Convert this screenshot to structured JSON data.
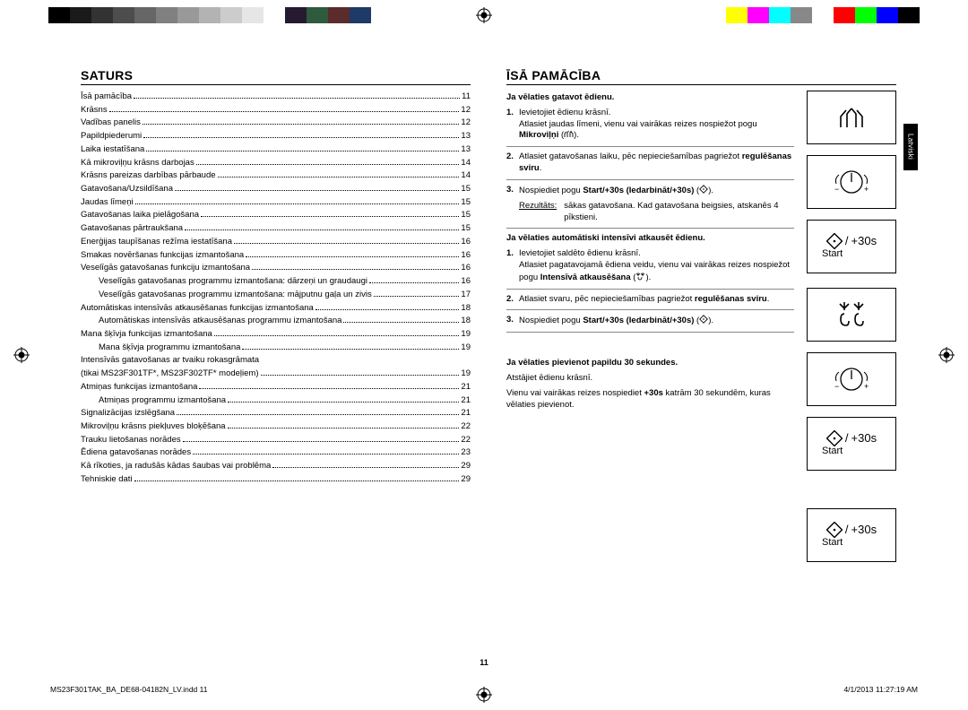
{
  "reg_mark": {
    "stroke": "#000"
  },
  "color_bar": {
    "left": [
      "#000000",
      "#1a1a1a",
      "#333333",
      "#4d4d4d",
      "#666666",
      "#808080",
      "#999999",
      "#b3b3b3",
      "#cccccc",
      "#e6e6e6",
      "#ffffff",
      "#261a33",
      "#2e5a3d",
      "#5a2c2c",
      "#1e3a66"
    ],
    "right": [
      "#ffff00",
      "#ff00ff",
      "#00ffff",
      "#888888",
      "#ffffff",
      "#ff0000",
      "#00ff00",
      "#0000ff",
      "#000000"
    ]
  },
  "side_tab": "Latviski",
  "left": {
    "title": "SATURS",
    "toc": [
      {
        "t": "Īsā pamācība",
        "p": "11",
        "i": 0
      },
      {
        "t": "Krāsns",
        "p": "12",
        "i": 0
      },
      {
        "t": "Vadības panelis",
        "p": "12",
        "i": 0
      },
      {
        "t": "Papildpiederumi",
        "p": "13",
        "i": 0
      },
      {
        "t": "Laika iestatīšana",
        "p": "13",
        "i": 0
      },
      {
        "t": "Kā mikroviļņu krāsns darbojas",
        "p": "14",
        "i": 0
      },
      {
        "t": "Krāsns pareizas darbības pārbaude",
        "p": "14",
        "i": 0
      },
      {
        "t": "Gatavošana/Uzsildīšana",
        "p": "15",
        "i": 0
      },
      {
        "t": "Jaudas līmeņi",
        "p": "15",
        "i": 0
      },
      {
        "t": "Gatavošanas laika pielāgošana",
        "p": "15",
        "i": 0
      },
      {
        "t": "Gatavošanas pārtraukšana",
        "p": "15",
        "i": 0
      },
      {
        "t": "Enerģijas taupīšanas režīma iestatīšana",
        "p": "16",
        "i": 0
      },
      {
        "t": "Smakas novēršanas funkcijas izmantošana",
        "p": "16",
        "i": 0
      },
      {
        "t": "Veselīgās gatavošanas funkciju izmantošana",
        "p": "16",
        "i": 0
      },
      {
        "t": "Veselīgās gatavošanas programmu izmantošana: dārzeņi un graudaugi",
        "p": "16",
        "i": 1
      },
      {
        "t": "Veselīgās gatavošanas programmu izmantošana: mājputnu gaļa un zivis",
        "p": "17",
        "i": 1
      },
      {
        "t": "Automātiskas intensīvās atkausēšanas funkcijas izmantošana",
        "p": "18",
        "i": 0
      },
      {
        "t": "Automātiskas intensīvās atkausēšanas programmu izmantošana",
        "p": "18",
        "i": 1
      },
      {
        "t": "Mana šķīvja funkcijas izmantošana",
        "p": "19",
        "i": 0
      },
      {
        "t": "Mana šķīvja programmu izmantošana",
        "p": "19",
        "i": 1
      },
      {
        "t": "Intensīvās gatavošanas ar tvaiku rokasgrāmata",
        "p": "",
        "i": 0,
        "nodots": true
      },
      {
        "t": "(tikai MS23F301TF*, MS23F302TF* modeļiem)",
        "p": "19",
        "i": 0
      },
      {
        "t": "Atmiņas funkcijas izmantošana",
        "p": "21",
        "i": 0
      },
      {
        "t": "Atmiņas programmu izmantošana",
        "p": "21",
        "i": 1
      },
      {
        "t": "Signalizācijas izslēgšana",
        "p": "21",
        "i": 0
      },
      {
        "t": "Mikroviļņu krāsns piekļuves bloķēšana",
        "p": "22",
        "i": 0
      },
      {
        "t": "Trauku lietošanas norādes",
        "p": "22",
        "i": 0
      },
      {
        "t": "Ēdiena gatavošanas norādes",
        "p": "23",
        "i": 0
      },
      {
        "t": "Kā rīkoties, ja radušās kādas šaubas vai problēma",
        "p": "29",
        "i": 0
      },
      {
        "t": "Tehniskie dati",
        "p": "29",
        "i": 0
      }
    ]
  },
  "right": {
    "title": "ĪSĀ PAMĀCĪBA",
    "sec1": {
      "head": "Ja vēlaties gatavot ēdienu.",
      "s1a": "Ievietojiet ēdienu krāsnī.",
      "s1b_pre": "Atlasiet jaudas līmeni, vienu vai vairākas reizes nospiežot pogu ",
      "s1b_bold": "Mikroviļņi",
      "s1b_post": " (",
      "s1b_end": ").",
      "s2_pre": "Atlasiet gatavošanas laiku, pēc nepieciešamības pagriežot ",
      "s2_bold": "regulēšanas sviru",
      "s2_post": ".",
      "s3_pre": "Nospiediet pogu ",
      "s3_bold": "Start/+30s (Iedarbināt/+30s)",
      "s3_post": " (",
      "s3_end": ").",
      "res_label": "Rezultāts:",
      "res_text": "sākas gatavošana. Kad gatavošana beigsies, atskanēs 4 pīkstieni."
    },
    "sec2": {
      "head": "Ja vēlaties automātiski intensīvi atkausēt ēdienu.",
      "s1a": "Ievietojiet saldēto ēdienu krāsnī.",
      "s1b_pre": "Atlasiet pagatavojamā ēdiena veidu, vienu vai vairākas reizes nospiežot pogu ",
      "s1b_bold": "Intensīvā atkausēšana",
      "s1b_post": " (",
      "s1b_end": ").",
      "s2_pre": "Atlasiet svaru, pēc nepieciešamības pagriežot ",
      "s2_bold": "regulēšanas sviru",
      "s2_post": ".",
      "s3_pre": "Nospiediet pogu ",
      "s3_bold": "Start/+30s (Iedarbināt/+30s)",
      "s3_post": " (",
      "s3_end": ")."
    },
    "sec3": {
      "head": "Ja vēlaties pievienot papildu 30 sekundes.",
      "p1": "Atstājiet ēdienu krāsnī.",
      "p2_pre": "Vienu vai vairākas reizes nospiediet ",
      "p2_bold": "+30s",
      "p2_post": " katrām 30 sekundēm, kuras vēlaties pievienot."
    },
    "icons": {
      "plus30": "+30s",
      "start": "Start"
    }
  },
  "page_number": "11",
  "footer": {
    "left": "MS23F301TAK_BA_DE68-04182N_LV.indd   11",
    "right": "4/1/2013   11:27:19 AM"
  }
}
